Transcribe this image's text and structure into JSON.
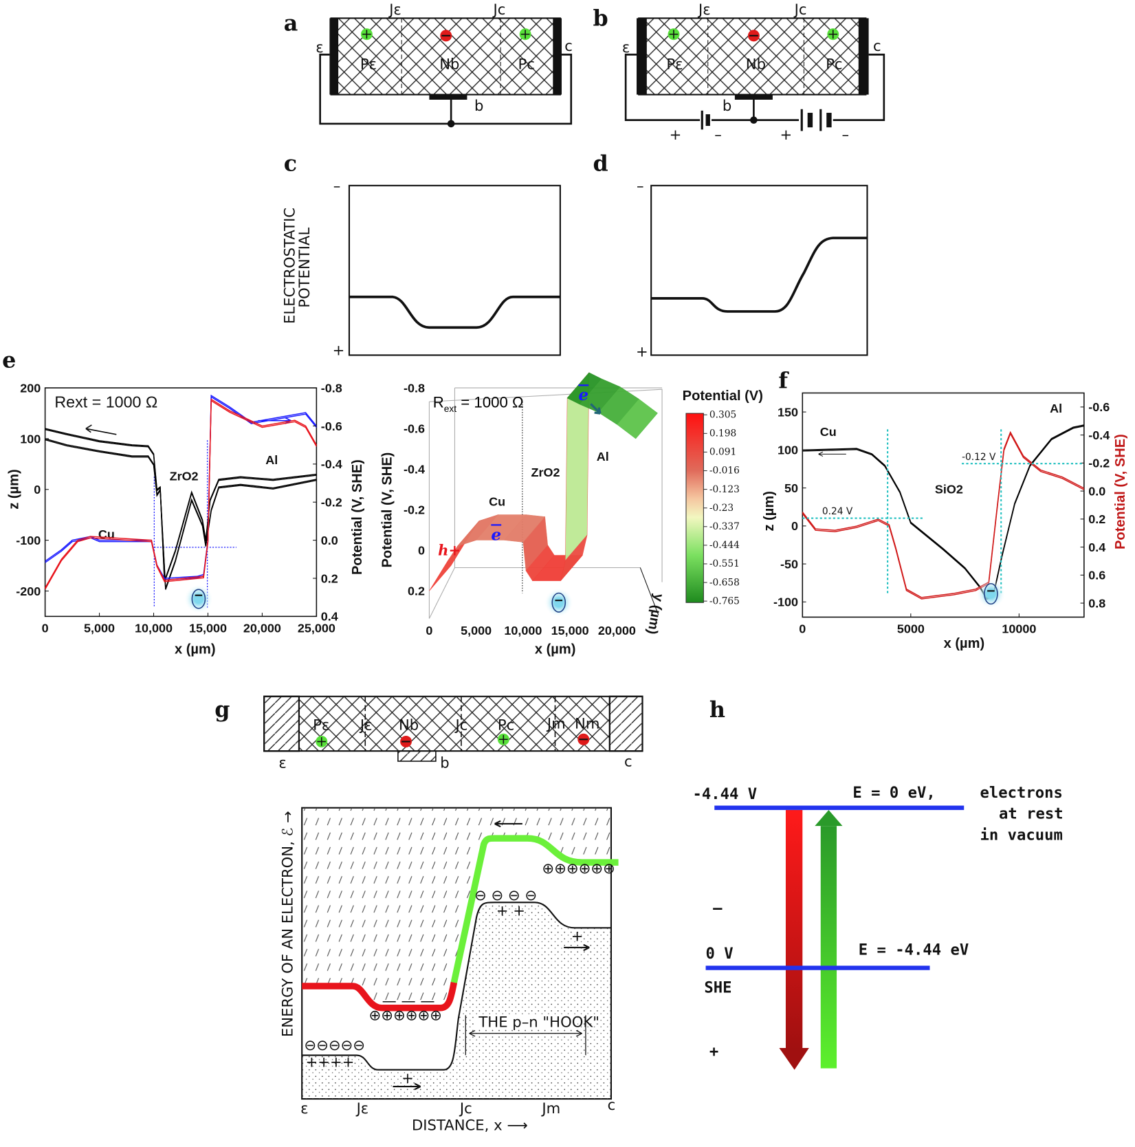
{
  "panels": {
    "a": {
      "letter": "a",
      "J_e": "Jε",
      "J_c": "Jc",
      "emitter": "ε",
      "collector": "c",
      "P_e": "Pε",
      "N_b": "Nb",
      "P_c": "Pc",
      "base": "b"
    },
    "b": {
      "letter": "b",
      "J_e": "Jε",
      "J_c": "Jc",
      "emitter": "ε",
      "collector": "c",
      "P_e": "Pε",
      "N_b": "Nb",
      "P_c": "Pc",
      "base": "b",
      "signs": [
        "+",
        "–",
        "+",
        "–"
      ]
    },
    "c": {
      "letter": "c",
      "ylabel_1": "ELECTROSTATIC",
      "ylabel_2": "POTENTIAL",
      "minus": "–",
      "plus": "+"
    },
    "d": {
      "letter": "d",
      "minus": "–",
      "plus": "+"
    },
    "e": {
      "letter": "e"
    },
    "f": {
      "letter": "f"
    },
    "g": {
      "letter": "g",
      "device": {
        "P_e": "Pε",
        "J_e": "Jε",
        "N_b": "Nb",
        "J_c": "Jc",
        "P_c": "Pc",
        "J_m": "Jm",
        "N_m": "Nm",
        "emitter": "ε",
        "base": "b",
        "collector": "c"
      },
      "energy": {
        "ylabel": "ENERGY OF AN ELECTRON, ℰ →",
        "xlabel": "DISTANCE, x ⟶",
        "xticks": [
          "ε",
          "Jε",
          "Jc",
          "Jm",
          "c"
        ],
        "hook": "THE p–n \"HOOK\"",
        "plus_base": "⊕⊕⊕⊕⊕⊕",
        "plus_right": "⊕⊕⊕⊕⊕⊕",
        "minus_left": "⊖⊖⊖⊖⊖",
        "minus_mid": "⊖ ⊖ ⊖ ⊖",
        "holes_left": "++++",
        "holes_mid": "+   +",
        "hole_base": "+",
        "hole_right": "+",
        "dashes": "— — —"
      }
    },
    "h": {
      "letter": "h",
      "vac_potential": "-4.44 V",
      "vac_energy": "E = 0 eV,",
      "vac_desc": [
        "electrons",
        "at rest",
        "in vacuum"
      ],
      "minus": "–",
      "she_potential": "0 V",
      "she_energy": "E = -4.44 eV",
      "she_label": "SHE",
      "plus": "+"
    }
  },
  "colors": {
    "red": "#e8141c",
    "blue": "#1a1aff",
    "green": "#4bd12a",
    "cyan": "#22c0c0",
    "level": "#2233ee"
  },
  "chart_data": [
    {
      "id": "e_profile",
      "type": "line",
      "annotation": "Rext = 1000 Ω",
      "annotation_main": "R",
      "annotation_sub": "ext",
      "annotation_rest": " = 1000 Ω",
      "region_labels": [
        "Cu",
        "ZrO2",
        "Al"
      ],
      "xlabel": "x (µm)",
      "ylabel": "z (µm)",
      "y2label": "Potential (V, SHE)",
      "xlim": [
        0,
        25000
      ],
      "ylim": [
        -250,
        200
      ],
      "y2lim": [
        0.4,
        -0.8
      ],
      "xticks": [
        "0",
        "5,000",
        "10,000",
        "15,000",
        "20,000",
        "25,000"
      ],
      "yticks": [
        "200",
        "100",
        "0",
        "-100",
        "-200"
      ],
      "y2ticks": [
        "-0.8",
        "-0.6",
        "-0.4",
        "-0.2",
        "0.0",
        "0.2",
        "0.4"
      ],
      "series": [
        {
          "axis": "z",
          "color": "#000000",
          "x": [
            0,
            2000,
            5000,
            8000,
            9500,
            10000,
            10300,
            10600,
            11000,
            12000,
            13500,
            14500,
            14800,
            15200,
            16000,
            18000,
            21000,
            25000
          ],
          "y": [
            120,
            110,
            96,
            88,
            86,
            70,
            0,
            5,
            -180,
            -120,
            -5,
            -60,
            -100,
            -20,
            20,
            25,
            20,
            30
          ]
        },
        {
          "axis": "z",
          "color": "#000000",
          "x": [
            0,
            2000,
            5000,
            8000,
            9500,
            10000,
            10300,
            10600,
            11100,
            12000,
            13500,
            14500,
            14800,
            15300,
            16000,
            18000,
            21000,
            25000
          ],
          "y": [
            100,
            88,
            76,
            66,
            66,
            50,
            -10,
            0,
            -195,
            -140,
            -20,
            -70,
            -110,
            -40,
            5,
            10,
            3,
            20
          ]
        },
        {
          "axis": "potential",
          "color": "#1a1aff",
          "x": [
            0,
            1500,
            2500,
            4200,
            5000,
            9800,
            10300,
            11000,
            14000,
            14600,
            15000,
            15300,
            17000,
            19000,
            22000,
            24000,
            25000
          ],
          "y": [
            0.11,
            0.05,
            0.0,
            -0.02,
            0.0,
            0.0,
            0.13,
            0.2,
            0.19,
            0.18,
            0.0,
            -0.76,
            -0.7,
            -0.62,
            -0.65,
            -0.67,
            -0.6
          ]
        },
        {
          "axis": "potential",
          "color": "#e8141c",
          "x": [
            0,
            1500,
            3000,
            4200,
            9800,
            10300,
            11000,
            14600,
            15000,
            15300,
            17000,
            20000,
            23000,
            24000,
            25000
          ],
          "y": [
            0.25,
            0.1,
            0.0,
            -0.02,
            0.0,
            0.13,
            0.21,
            0.19,
            0.0,
            -0.74,
            -0.68,
            -0.6,
            -0.63,
            -0.6,
            -0.5
          ]
        }
      ]
    },
    {
      "id": "e_3d",
      "type": "area",
      "annotation_main": "R",
      "annotation_sub": "ext",
      "annotation_rest": " = 1000 Ω",
      "region_labels": [
        "Cu",
        "ZrO2",
        "Al"
      ],
      "carriers": {
        "hole": "h+",
        "electron_left": "e",
        "electron_right": "e"
      },
      "xlabel": "x (µm)",
      "ylabel": "Potential (V, SHE)",
      "zlabel": "y (µm)",
      "xlim": [
        0,
        22000
      ],
      "ylim": [
        0.2,
        -0.8
      ],
      "xticks": [
        "0",
        "5,000",
        "10,000",
        "15,000",
        "20,000"
      ],
      "yticks": [
        "-0.8",
        "-0.6",
        "-0.4",
        "-0.2",
        "0",
        "0.2"
      ],
      "colorbar": {
        "title": "Potential (V)",
        "ticks": [
          "0.305",
          "0.198",
          "0.091",
          "-0.016",
          "-0.123",
          "-0.23",
          "-0.337",
          "-0.444",
          "-0.551",
          "-0.658",
          "-0.765"
        ],
        "range": [
          0.305,
          -0.765
        ]
      },
      "series": [
        {
          "x": [
            0,
            2000,
            3000,
            5000,
            8000,
            10000,
            10300,
            11000,
            14000,
            14500,
            14700,
            16000,
            18000,
            20000,
            22000
          ],
          "y": [
            0.2,
            0.05,
            -0.02,
            -0.05,
            -0.05,
            -0.04,
            0.1,
            0.15,
            0.15,
            0.05,
            -0.75,
            -0.72,
            -0.68,
            -0.62,
            -0.55
          ]
        }
      ]
    },
    {
      "id": "f_profile",
      "type": "line",
      "region_labels": [
        "Cu",
        "SiO2",
        "Al"
      ],
      "annotations": [
        "0.24 V",
        "-0.12 V"
      ],
      "xlabel": "x (µm)",
      "ylabel": "z (µm)",
      "y2label": "Potential (V, SHE)",
      "xlim": [
        0,
        13000
      ],
      "ylim": [
        -120,
        175
      ],
      "y2lim": [
        0.9,
        -0.7
      ],
      "xticks": [
        "0",
        "5000",
        "10000"
      ],
      "yticks": [
        "150",
        "100",
        "50",
        "0",
        "-50",
        "-100"
      ],
      "y2ticks": [
        "-0.6",
        "-0.4",
        "-0.2",
        "0.0",
        "0.2",
        "0.4",
        "0.6",
        "0.8"
      ],
      "series": [
        {
          "axis": "z",
          "color": "#000000",
          "x": [
            0,
            2500,
            3200,
            3800,
            4500,
            5000,
            6500,
            7500,
            8200,
            8500,
            8800,
            9200,
            9800,
            10500,
            11500,
            12500,
            13000
          ],
          "y": [
            100,
            102,
            95,
            80,
            45,
            5,
            -30,
            -55,
            -80,
            -95,
            -92,
            -40,
            30,
            80,
            115,
            130,
            133
          ]
        },
        {
          "axis": "potential",
          "color": "#d01818",
          "x": [
            0,
            600,
            1500,
            2500,
            3500,
            4000,
            4300,
            4800,
            5500,
            7000,
            8000,
            8600,
            9000,
            9300,
            9600,
            10200,
            11000,
            12000,
            13000
          ],
          "y": [
            0.15,
            0.27,
            0.28,
            0.25,
            0.2,
            0.24,
            0.4,
            0.7,
            0.76,
            0.73,
            0.7,
            0.65,
            0.1,
            -0.3,
            -0.42,
            -0.25,
            -0.15,
            -0.1,
            -0.02
          ]
        }
      ]
    }
  ]
}
